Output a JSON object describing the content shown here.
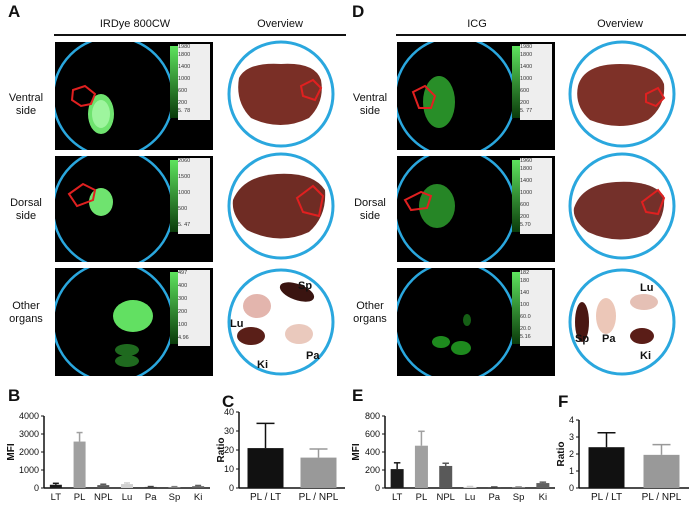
{
  "panel_A": {
    "label": "A",
    "headers": [
      "IRDye 800CW",
      "Overview"
    ],
    "rows": [
      {
        "label1": "Ventral",
        "label2": "side",
        "colorbar": [
          "1980",
          "1800",
          "1400",
          "1000",
          "600",
          "200",
          "5. 78"
        ]
      },
      {
        "label1": "Dorsal",
        "label2": "side",
        "colorbar": [
          "2060",
          "1500",
          "1000",
          "500",
          "5. 47"
        ]
      },
      {
        "label1": "Other",
        "label2": "organs",
        "colorbar": [
          "497",
          "400",
          "300",
          "200",
          "100",
          "4.96"
        ]
      }
    ],
    "organ_labels": [
      "Sp",
      "Lu",
      "Ki",
      "Pa"
    ]
  },
  "panel_D": {
    "label": "D",
    "headers": [
      "ICG",
      "Overview"
    ],
    "rows": [
      {
        "label1": "Ventral",
        "label2": "side",
        "colorbar": [
          "1980",
          "1800",
          "1400",
          "1000",
          "600",
          "200",
          "5. 77"
        ]
      },
      {
        "label1": "Dorsal",
        "label2": "side",
        "colorbar": [
          "1960",
          "1800",
          "1400",
          "1000",
          "600",
          "200",
          "5.70"
        ]
      },
      {
        "label1": "Other",
        "label2": "organs",
        "colorbar": [
          "182",
          "180",
          "140",
          "100",
          "60.0",
          "20.0",
          "5.16"
        ]
      }
    ],
    "organ_labels": [
      "Lu",
      "Sp",
      "Pa",
      "Ki"
    ]
  },
  "panel_letters": {
    "B": "B",
    "C": "C",
    "E": "E",
    "F": "F"
  },
  "chart_data": [
    {
      "panel": "B",
      "type": "bar",
      "ylabel": "MFI",
      "ylim": [
        0,
        4000
      ],
      "yticks": [
        "0",
        "1000",
        "2000",
        "3000",
        "4000"
      ],
      "categories": [
        "LT",
        "PL",
        "NPL",
        "Lu",
        "Pa",
        "Sp",
        "Ki"
      ],
      "values": [
        180,
        2580,
        160,
        220,
        60,
        55,
        100
      ],
      "errors": [
        80,
        500,
        50,
        60,
        20,
        20,
        40
      ],
      "colors": [
        "#1a1a1a",
        "#a0a0a0",
        "#595959",
        "#d0d0d0",
        "#404040",
        "#808080",
        "#606060"
      ]
    },
    {
      "panel": "C",
      "type": "bar",
      "ylabel": "Ratio",
      "ylim": [
        0,
        40
      ],
      "yticks": [
        "0",
        "10",
        "20",
        "30",
        "40"
      ],
      "categories": [
        "PL / LT",
        "PL / NPL"
      ],
      "values": [
        21,
        16
      ],
      "errors": [
        13,
        4.5
      ],
      "colors": [
        "#111111",
        "#999999"
      ]
    },
    {
      "panel": "E",
      "type": "bar",
      "ylabel": "MFI",
      "ylim": [
        0,
        800
      ],
      "yticks": [
        "0",
        "200",
        "400",
        "600",
        "800"
      ],
      "categories": [
        "LT",
        "PL",
        "NPL",
        "Lu",
        "Pa",
        "Sp",
        "Ki"
      ],
      "values": [
        210,
        470,
        245,
        12,
        8,
        8,
        55
      ],
      "errors": [
        70,
        160,
        30,
        5,
        3,
        3,
        10
      ],
      "colors": [
        "#1a1a1a",
        "#a0a0a0",
        "#595959",
        "#d0d0d0",
        "#404040",
        "#808080",
        "#606060"
      ]
    },
    {
      "panel": "F",
      "type": "bar",
      "ylabel": "Ratio",
      "ylim": [
        0,
        4
      ],
      "yticks": [
        "0",
        "1",
        "2",
        "3",
        "4"
      ],
      "categories": [
        "PL / LT",
        "PL / NPL"
      ],
      "values": [
        2.4,
        1.95
      ],
      "errors": [
        0.85,
        0.6
      ],
      "colors": [
        "#111111",
        "#999999"
      ]
    }
  ]
}
